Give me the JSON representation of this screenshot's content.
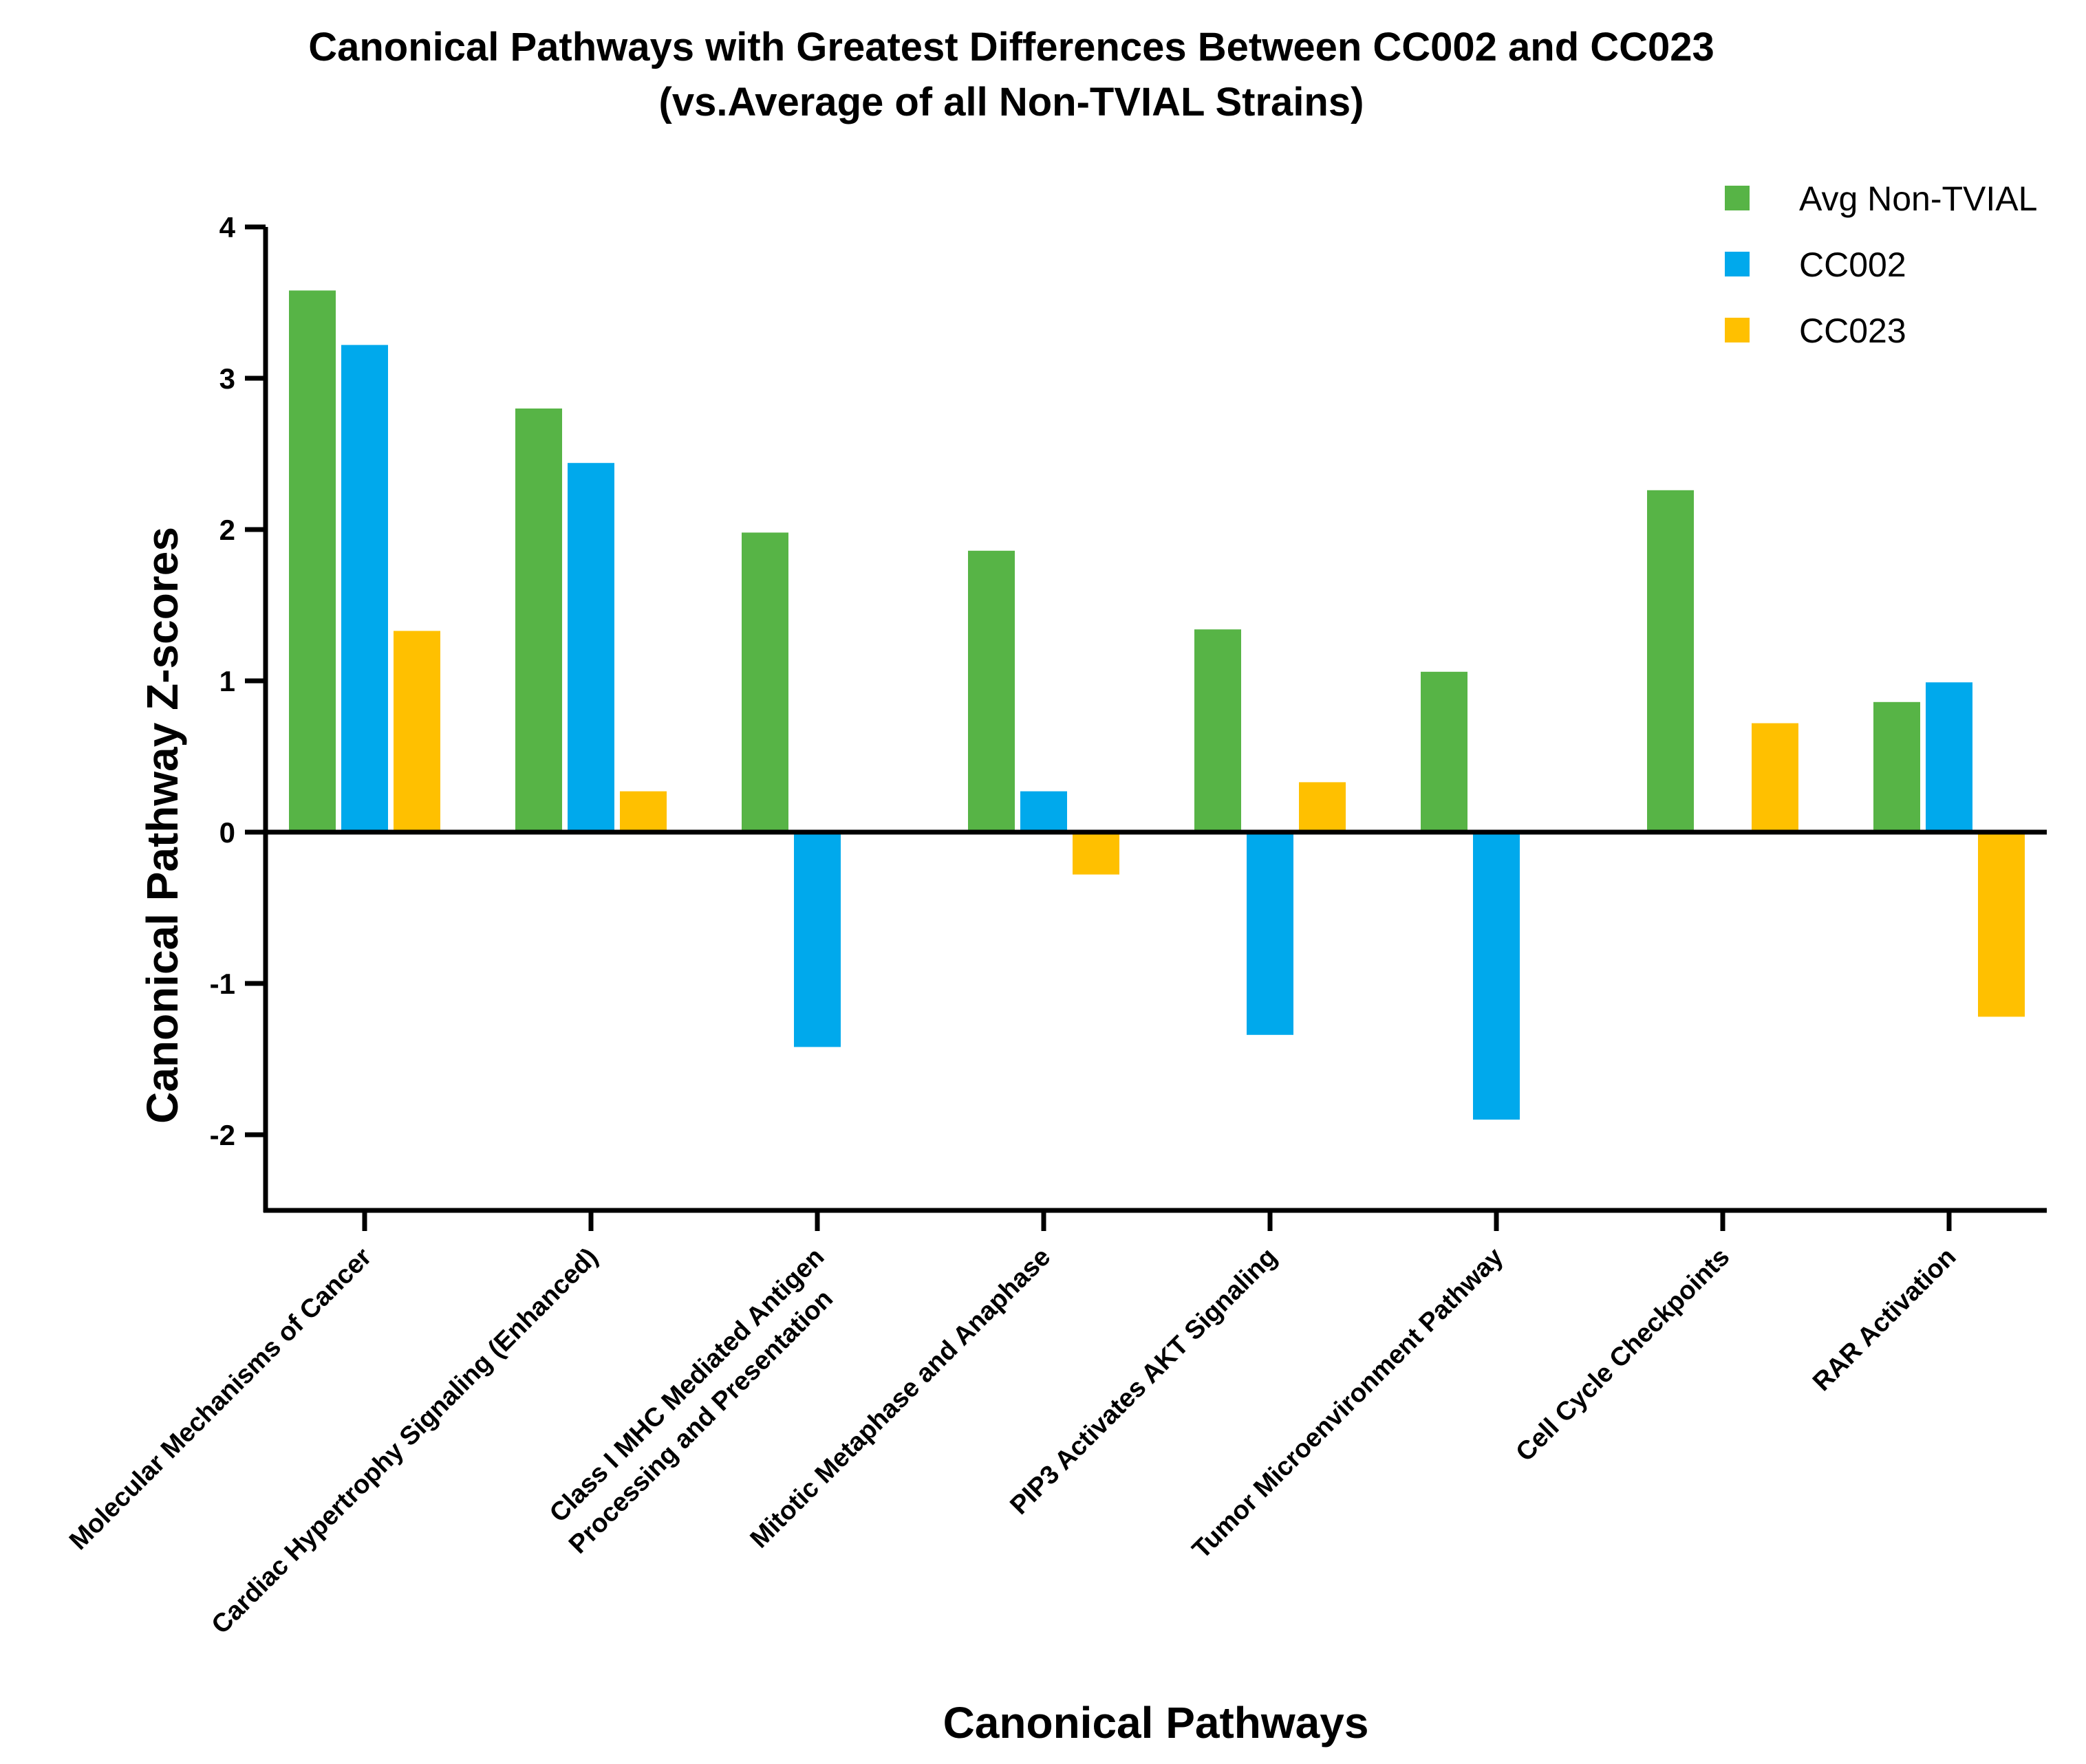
{
  "chart_data": {
    "type": "bar",
    "title": "Canonical Pathways with Greatest Differences Between CC002 and CC023",
    "subtitle": "(vs.Average of all Non-TVIAL Strains)",
    "xlabel": "Canonical Pathways",
    "ylabel": "Canonical Pathway Z-scores",
    "ylim": [
      -2.5,
      4
    ],
    "yticks": [
      -2,
      -1,
      0,
      1,
      2,
      3,
      4
    ],
    "ytick_labels": [
      "-2",
      "-1",
      "0",
      "1",
      "2",
      "3",
      "4"
    ],
    "legend_position": "top-right",
    "categories": [
      [
        "Molecular Mechanisms of Cancer"
      ],
      [
        "Cardiac Hypertrophy Signaling (Enhanced)"
      ],
      [
        "Class I MHC Mediated Antigen",
        "Processing and Presentation"
      ],
      [
        "Mitotic Metaphase and Anaphase"
      ],
      [
        "PIP3 Activates AKT Signaling"
      ],
      [
        "Tumor Microenvironment Pathway"
      ],
      [
        "Cell Cycle Checkpoints"
      ],
      [
        "RAR Activation"
      ]
    ],
    "series": [
      {
        "name": "Avg Non-TVIAL",
        "color": "#57b446",
        "values": [
          3.58,
          2.8,
          1.98,
          1.86,
          1.34,
          1.06,
          2.26,
          0.86
        ]
      },
      {
        "name": "CC002",
        "color": "#00a9ec",
        "values": [
          3.22,
          2.44,
          -1.42,
          0.27,
          -1.34,
          -1.9,
          null,
          0.99
        ]
      },
      {
        "name": "CC023",
        "color": "#ffc000",
        "values": [
          1.33,
          0.27,
          null,
          -0.28,
          0.33,
          null,
          0.72,
          -1.22
        ]
      }
    ]
  }
}
